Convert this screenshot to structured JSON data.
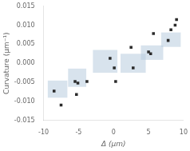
{
  "chart_data": {
    "type": "scatter",
    "xlabel": "Δ (μm)",
    "ylabel": "Curvature (μm⁻¹)",
    "xlim": [
      -10,
      10
    ],
    "ylim": [
      -0.015,
      0.015
    ],
    "xticks": [
      -10,
      -5,
      0,
      5,
      10
    ],
    "yticks": [
      -0.015,
      {
        "value": -0.01,
        "label": "-0.010"
      },
      -0.005,
      {
        "value": 0,
        "label": "0.000"
      },
      0.005,
      {
        "value": 0.01,
        "label": "0.010"
      },
      0.015
    ],
    "grid": false,
    "series": [
      {
        "type": "box",
        "color": "#b8ccdf",
        "boxes": [
          {
            "cx": -8.0,
            "cy": -0.0068,
            "w": 2.8,
            "h": 0.0045
          },
          {
            "cx": -5.2,
            "cy": -0.0038,
            "w": 2.6,
            "h": 0.0048
          },
          {
            "cx": -1.2,
            "cy": 0.0005,
            "w": 3.5,
            "h": 0.006
          },
          {
            "cx": 2.8,
            "cy": 0.0,
            "w": 3.6,
            "h": 0.005
          },
          {
            "cx": 5.5,
            "cy": 0.0028,
            "w": 3.2,
            "h": 0.0038
          },
          {
            "cx": 8.2,
            "cy": 0.0062,
            "w": 2.8,
            "h": 0.0038
          }
        ]
      },
      {
        "type": "scatter",
        "color": "#2a2a2a",
        "marker": "square",
        "x": [
          -8.5,
          -7.5,
          -5.5,
          -5.3,
          -5.1,
          -3.8,
          -0.5,
          0.1,
          0.3,
          2.5,
          2.8,
          5.0,
          5.3,
          5.7,
          7.8,
          8.2,
          8.8,
          9.0
        ],
        "values": [
          -0.0073,
          -0.011,
          -0.0048,
          -0.0082,
          -0.0052,
          -0.0048,
          0.0013,
          -0.0012,
          -0.0048,
          0.0042,
          -0.0012,
          0.003,
          0.0025,
          0.0078,
          0.006,
          0.0088,
          0.01,
          0.0115
        ]
      }
    ]
  }
}
